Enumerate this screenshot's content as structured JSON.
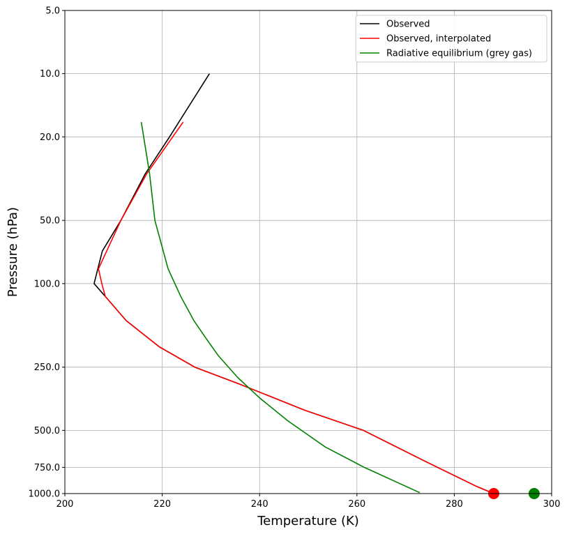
{
  "chart_data": {
    "type": "line",
    "title": "",
    "xlabel": "Temperature (K)",
    "ylabel": "Pressure (hPa)",
    "xlim": [
      200,
      300
    ],
    "ylim": [
      5.0,
      1000.0
    ],
    "yscale": "log",
    "y_inverted": true,
    "grid": true,
    "legend_position": "top-right",
    "x_ticks": [
      "200",
      "220",
      "240",
      "260",
      "280",
      "300"
    ],
    "y_ticks": [
      {
        "value": 5.0,
        "label": "5.0"
      },
      {
        "value": 10.0,
        "label": "10.0"
      },
      {
        "value": 20.0,
        "label": "20.0"
      },
      {
        "value": 50.0,
        "label": "50.0"
      },
      {
        "value": 100.0,
        "label": "100.0"
      },
      {
        "value": 250.0,
        "label": "250.0"
      },
      {
        "value": 500.0,
        "label": "500.0"
      },
      {
        "value": 750.0,
        "label": "750.0"
      },
      {
        "value": 1000.0,
        "label": "1000.0"
      }
    ],
    "series": [
      {
        "name": "Observed",
        "color": "#000000",
        "x": [
          229.7,
          221.5,
          216.5,
          211.5,
          207.7,
          206.0,
          208.3,
          212.6,
          219.4,
          226.7,
          235.7,
          249.2,
          261.3,
          273.9,
          284.6,
          288.1
        ],
        "y": [
          10.0,
          20.0,
          30.0,
          50.0,
          70.0,
          100.0,
          115.0,
          150.0,
          200.0,
          250.0,
          300.0,
          400.0,
          500.0,
          700.0,
          925.0,
          1000.0
        ]
      },
      {
        "name": "Observed, interpolated",
        "color": "#ff0000",
        "x": [
          224.3,
          216.8,
          211.5,
          206.9,
          207.6,
          208.3,
          212.6,
          219.4,
          226.7,
          235.7,
          249.2,
          261.3,
          273.9,
          284.6,
          288.1
        ],
        "y": [
          17.0,
          30.0,
          50.0,
          85.0,
          100.0,
          115.0,
          150.0,
          200.0,
          250.0,
          300.0,
          400.0,
          500.0,
          700.0,
          925.0,
          1000.0
        ]
      },
      {
        "name": "Radiative equilibrium (grey gas)",
        "color": "#008000",
        "x": [
          215.7,
          217.4,
          218.5,
          221.2,
          223.8,
          226.5,
          229.2,
          231.5,
          235.5,
          240.0,
          245.8,
          253.5,
          261.5,
          272.9
        ],
        "y": [
          17.0,
          30.0,
          50.0,
          85.0,
          115.0,
          150.0,
          185.0,
          220.0,
          280.0,
          350.0,
          450.0,
          600.0,
          750.0,
          990.0
        ]
      }
    ],
    "markers": [
      {
        "x": 288.1,
        "y": 1000.0,
        "color": "#ff0000"
      },
      {
        "x": 296.4,
        "y": 1000.0,
        "color": "#008000"
      }
    ]
  }
}
